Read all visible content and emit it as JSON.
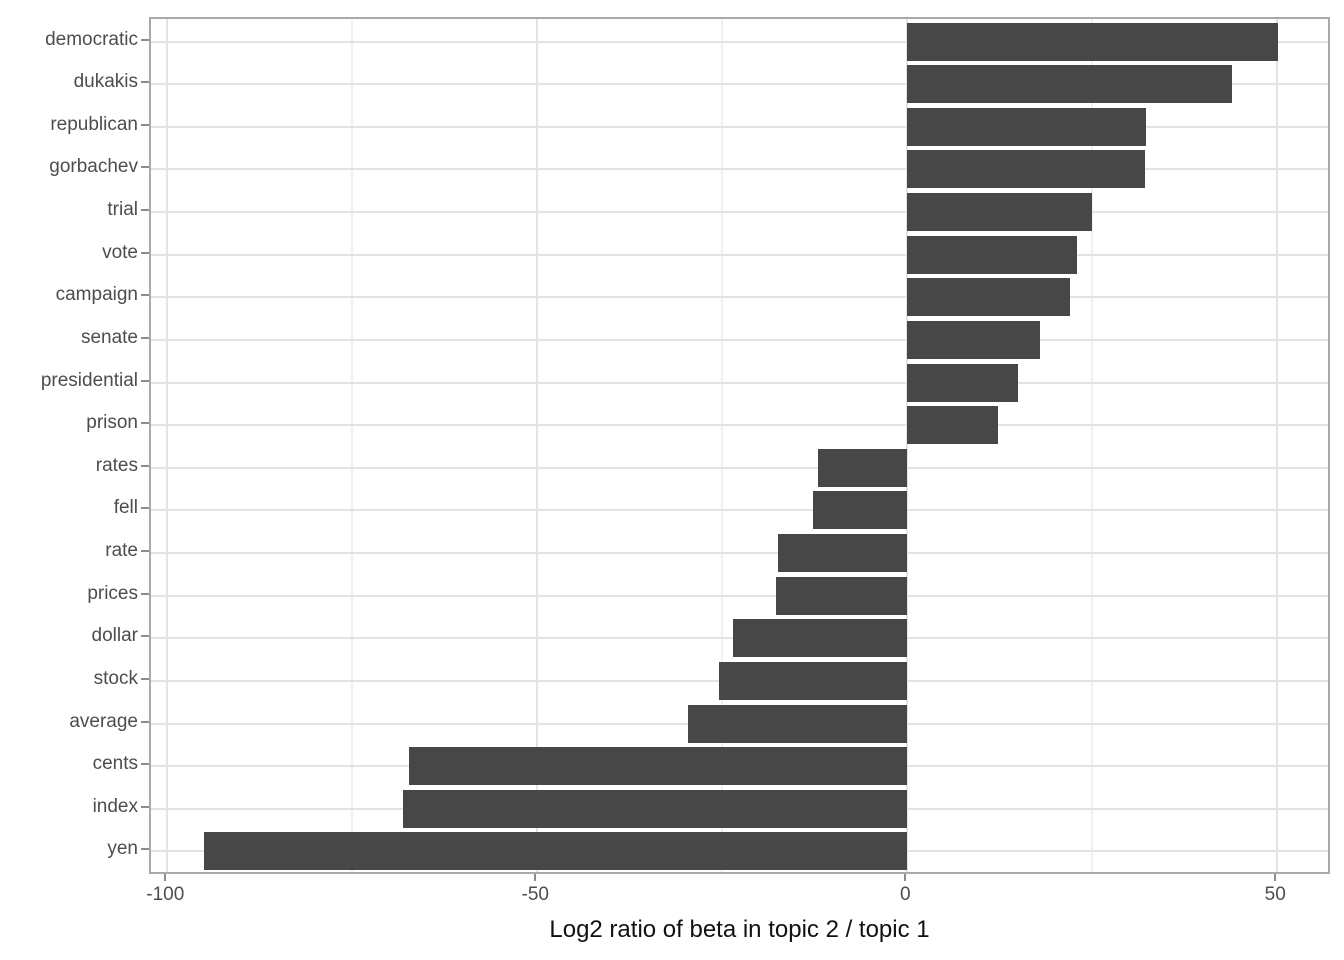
{
  "figure": {
    "background": "#ffffff",
    "bar_color": "#474747",
    "grid_major_color": "#e3e3e3",
    "grid_minor_color": "#f0f0f0",
    "panel_border_color": "#a9a9a9",
    "tick_color": "#8c8c8c",
    "axis_text_color": "#4d4d4d",
    "axis_title_color": "#111111"
  },
  "chart_data": {
    "type": "bar",
    "orientation": "horizontal",
    "title": "",
    "xlabel": "Log2 ratio of beta in topic 2 / topic 1",
    "ylabel": "",
    "categories": [
      "democratic",
      "dukakis",
      "republican",
      "gorbachev",
      "trial",
      "vote",
      "campaign",
      "senate",
      "presidential",
      "prison",
      "rates",
      "fell",
      "rate",
      "prices",
      "dollar",
      "stock",
      "average",
      "cents",
      "index",
      "yen"
    ],
    "values": [
      50.1,
      43.9,
      32.3,
      32.1,
      24.9,
      23.0,
      22.0,
      18.0,
      15.0,
      12.3,
      -12.0,
      -12.8,
      -17.4,
      -17.8,
      -23.6,
      -25.4,
      -29.6,
      -67.4,
      -68.2,
      -95.1
    ],
    "x_ticks": [
      -100,
      -50,
      0,
      50
    ],
    "x_tick_labels": [
      "-100",
      "-50",
      "0",
      "50"
    ],
    "x_minor_ticks": [
      -75,
      -25,
      25
    ],
    "xlim": [
      -102.2,
      57.4
    ],
    "grid": true,
    "legend": false,
    "bar_width_fraction": 0.9
  }
}
